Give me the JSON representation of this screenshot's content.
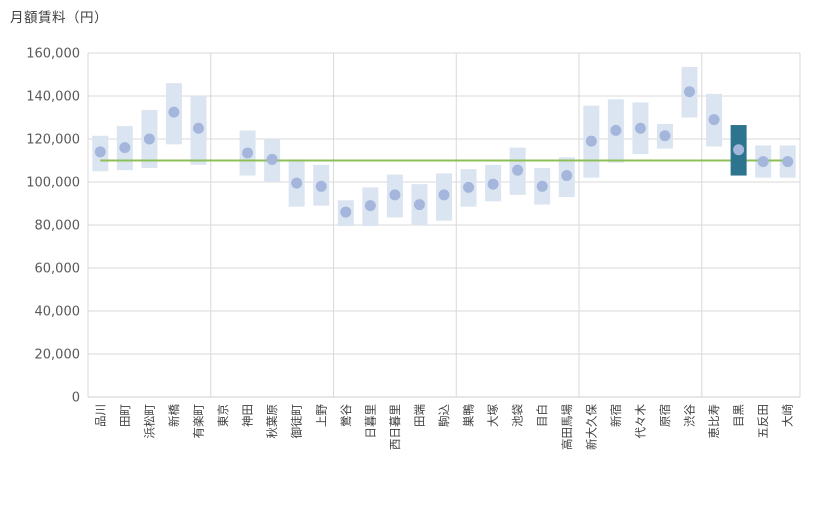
{
  "chart_data": {
    "type": "bar",
    "subtype": "floating-range-bar-with-median-dot",
    "title": "月額賃料（円）",
    "xlabel": "",
    "ylabel": "月額賃料（円）",
    "ylim": [
      0,
      160000
    ],
    "ytick_interval": 20000,
    "ytick_labels": [
      "0",
      "20,000",
      "40,000",
      "60,000",
      "80,000",
      "100,000",
      "120,000",
      "140,000",
      "160,000"
    ],
    "grid": true,
    "x_gridline_every": 5,
    "legend": "none",
    "average_line": {
      "value": 110000
    },
    "categories": [
      "品川",
      "田町",
      "浜松町",
      "新橋",
      "有楽町",
      "東京",
      "神田",
      "秋葉原",
      "御徒町",
      "上野",
      "鶯谷",
      "日暮里",
      "西日暮里",
      "田端",
      "駒込",
      "巣鴨",
      "大塚",
      "池袋",
      "目白",
      "高田馬場",
      "新大久保",
      "新宿",
      "代々木",
      "原宿",
      "渋谷",
      "恵比寿",
      "目黒",
      "五反田",
      "大崎"
    ],
    "stations": [
      {
        "name": "品川",
        "low": 105000,
        "high": 121500,
        "mid": 114000,
        "highlight": false
      },
      {
        "name": "田町",
        "low": 105500,
        "high": 126000,
        "mid": 116000,
        "highlight": false
      },
      {
        "name": "浜松町",
        "low": 106500,
        "high": 133500,
        "mid": 120000,
        "highlight": false
      },
      {
        "name": "新橋",
        "low": 117500,
        "high": 146000,
        "mid": 132500,
        "highlight": false
      },
      {
        "name": "有楽町",
        "low": 108000,
        "high": 140000,
        "mid": 125000,
        "highlight": false
      },
      {
        "name": "東京",
        "low": null,
        "high": null,
        "mid": null,
        "highlight": false
      },
      {
        "name": "神田",
        "low": 103000,
        "high": 124000,
        "mid": 113500,
        "highlight": false
      },
      {
        "name": "秋葉原",
        "low": 100000,
        "high": 120000,
        "mid": 110500,
        "highlight": false
      },
      {
        "name": "御徒町",
        "low": 88500,
        "high": 110500,
        "mid": 99500,
        "highlight": false
      },
      {
        "name": "上野",
        "low": 89000,
        "high": 108000,
        "mid": 98000,
        "highlight": false
      },
      {
        "name": "鶯谷",
        "low": 79500,
        "high": 91500,
        "mid": 86000,
        "highlight": false
      },
      {
        "name": "日暮里",
        "low": 79500,
        "high": 97500,
        "mid": 89000,
        "highlight": false
      },
      {
        "name": "西日暮里",
        "low": 83500,
        "high": 103500,
        "mid": 94000,
        "highlight": false
      },
      {
        "name": "田端",
        "low": 80000,
        "high": 99000,
        "mid": 89500,
        "highlight": false
      },
      {
        "name": "駒込",
        "low": 82000,
        "high": 104000,
        "mid": 94000,
        "highlight": false
      },
      {
        "name": "巣鴨",
        "low": 88500,
        "high": 106000,
        "mid": 97500,
        "highlight": false
      },
      {
        "name": "大塚",
        "low": 91000,
        "high": 108000,
        "mid": 99000,
        "highlight": false
      },
      {
        "name": "池袋",
        "low": 94000,
        "high": 116000,
        "mid": 105500,
        "highlight": false
      },
      {
        "name": "目白",
        "low": 89500,
        "high": 106500,
        "mid": 98000,
        "highlight": false
      },
      {
        "name": "高田馬場",
        "low": 93000,
        "high": 111500,
        "mid": 103000,
        "highlight": false
      },
      {
        "name": "新大久保",
        "low": 102000,
        "high": 135500,
        "mid": 119000,
        "highlight": false
      },
      {
        "name": "新宿",
        "low": 109000,
        "high": 138500,
        "mid": 124000,
        "highlight": false
      },
      {
        "name": "代々木",
        "low": 113000,
        "high": 137000,
        "mid": 125000,
        "highlight": false
      },
      {
        "name": "原宿",
        "low": 115500,
        "high": 127000,
        "mid": 121500,
        "highlight": false
      },
      {
        "name": "渋谷",
        "low": 130000,
        "high": 153500,
        "mid": 142000,
        "highlight": false
      },
      {
        "name": "恵比寿",
        "low": 116500,
        "high": 141000,
        "mid": 129000,
        "highlight": false
      },
      {
        "name": "目黒",
        "low": 103000,
        "high": 126500,
        "mid": 115000,
        "highlight": true
      },
      {
        "name": "五反田",
        "low": 102000,
        "high": 117000,
        "mid": 109500,
        "highlight": false
      },
      {
        "name": "大崎",
        "low": 102000,
        "high": 117000,
        "mid": 109500,
        "highlight": false
      }
    ],
    "colors": {
      "bar": "#DBE5F1",
      "bar_highlight": "#2D748F",
      "dot": "#A4B6DC",
      "average_line": "#8CBF57",
      "gridline": "#D9D9D9",
      "axis_line": "#CFCFCF",
      "ytick_label": "#595959",
      "category_label": "#404040",
      "title": "#404040"
    }
  }
}
